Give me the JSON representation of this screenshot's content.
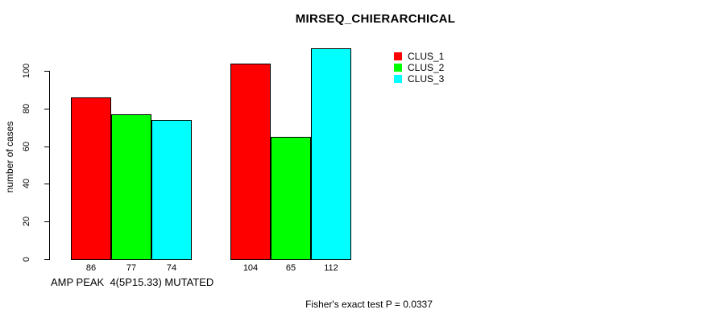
{
  "chart_data": {
    "type": "bar",
    "title": "MIRSEQ_CHIERARCHICAL",
    "ylabel": "number of cases",
    "xlabel": "AMP PEAK  4(5P15.33) MUTATED",
    "annotation": "Fisher's exact test P = 0.0337",
    "groups": 2,
    "series": [
      {
        "name": "CLUS_1",
        "color": "#ff0000",
        "values": [
          86,
          104
        ]
      },
      {
        "name": "CLUS_2",
        "color": "#00ff00",
        "values": [
          77,
          65
        ]
      },
      {
        "name": "CLUS_3",
        "color": "#00ffff",
        "values": [
          74,
          112
        ]
      }
    ],
    "bar_value_labels": [
      [
        86,
        77,
        74
      ],
      [
        104,
        65,
        112
      ]
    ],
    "yticks": [
      0,
      20,
      40,
      60,
      80,
      100
    ],
    "ylim": [
      0,
      112
    ],
    "grid": false,
    "legend_position": "top-right",
    "bar_border_color": "#000000",
    "text_color": "#000000",
    "background_color": "#ffffff"
  }
}
